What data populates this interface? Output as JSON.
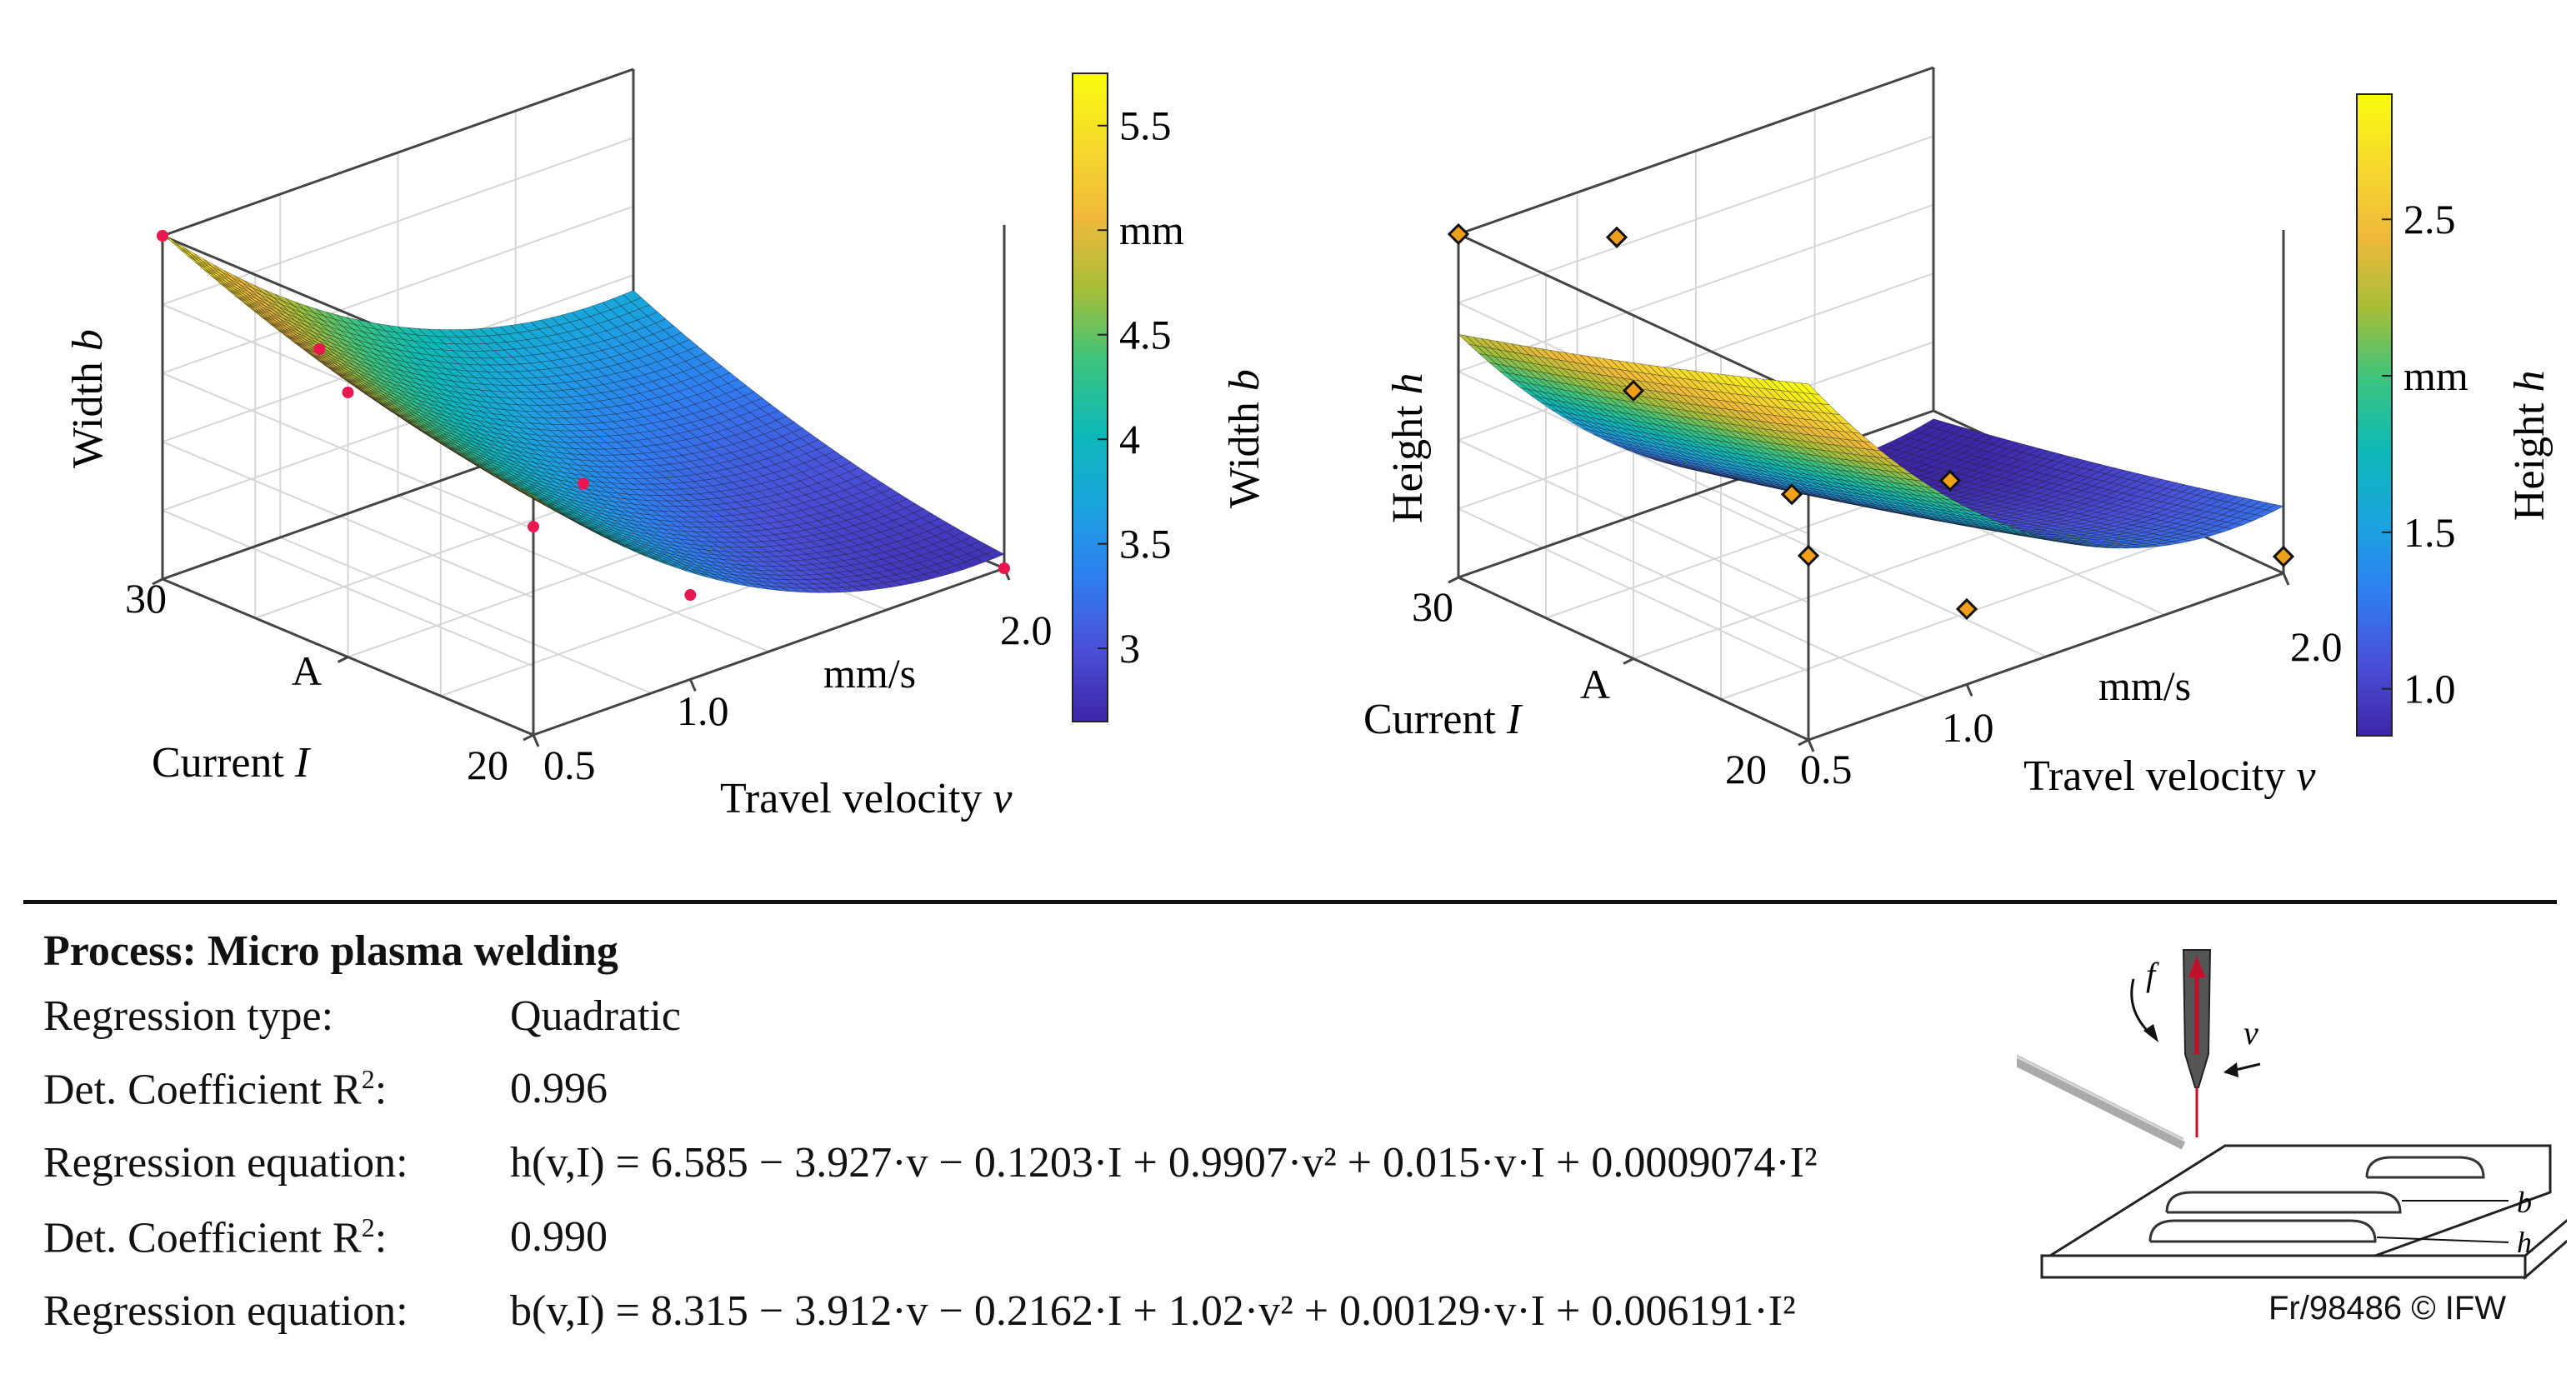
{
  "colors": {
    "colormap": [
      "#3e26a8",
      "#4a4fd8",
      "#2f7ef2",
      "#1aa5de",
      "#0db9b7",
      "#3bc47e",
      "#a6be38",
      "#f0b93a",
      "#f5da2b",
      "#f9fb0e"
    ],
    "width_points": "#e8174f",
    "height_points": "#f0a018"
  },
  "chart_data": [
    {
      "type": "surface3d",
      "name": "width",
      "zlabel_name": "Width",
      "zlabel_var": "b",
      "xlabel_name": "Travel velocity",
      "xlabel_var": "v",
      "x_unit": "mm/s",
      "ylabel_name": "Current",
      "ylabel_var": "I",
      "y_unit": "A",
      "x_range": [
        0.5,
        2.0
      ],
      "y_range": [
        20,
        30
      ],
      "x_ticks": [
        "0.5",
        "1.0",
        "2.0"
      ],
      "y_ticks": [
        "20",
        "30"
      ],
      "z_range": [
        2.65,
        5.7
      ],
      "coefficients": [
        8.315,
        -3.912,
        -0.2162,
        1.02,
        0.00129,
        0.006191
      ],
      "measured_points": [
        [
          0.5,
          30,
          5.7
        ],
        [
          0.5,
          25,
          5.0
        ],
        [
          0.5,
          20,
          4.5
        ],
        [
          1.0,
          30,
          4.2
        ],
        [
          1.25,
          25,
          3.45
        ],
        [
          1.0,
          20,
          3.4
        ],
        [
          2.0,
          20,
          2.65
        ]
      ],
      "colorbar": {
        "label_name": "Width",
        "label_var": "b",
        "ticks": [
          "3",
          "3.5",
          "4",
          "4.5",
          "mm",
          "5.5"
        ],
        "range": [
          2.65,
          5.75
        ]
      }
    },
    {
      "type": "surface3d",
      "name": "height",
      "zlabel_name": "Height",
      "zlabel_var": "h",
      "xlabel_name": "Travel velocity",
      "xlabel_var": "v",
      "x_unit": "mm/s",
      "ylabel_name": "Current",
      "ylabel_var": "I",
      "y_unit": "A",
      "x_range": [
        0.5,
        2.0
      ],
      "y_range": [
        20,
        30
      ],
      "x_ticks": [
        "0.5",
        "1.0",
        "2.0"
      ],
      "y_ticks": [
        "20",
        "30"
      ],
      "z_range": [
        0.85,
        2.9
      ],
      "coefficients": [
        6.585,
        -3.927,
        -0.1203,
        0.9907,
        0.015,
        0.0009074
      ],
      "measured_points": [
        [
          0.5,
          30,
          2.9
        ],
        [
          0.5,
          25,
          2.45
        ],
        [
          0.5,
          20,
          1.95
        ],
        [
          1.0,
          30,
          2.55
        ],
        [
          1.0,
          25,
          1.5
        ],
        [
          1.0,
          20,
          1.3
        ],
        [
          1.5,
          25,
          1.25
        ],
        [
          2.0,
          20,
          0.95
        ]
      ],
      "colorbar": {
        "label_name": "Height",
        "label_var": "h",
        "ticks": [
          "1.0",
          "1.5",
          "mm",
          "2.5"
        ],
        "range": [
          0.85,
          2.9
        ]
      }
    }
  ],
  "process": {
    "title": "Process: Micro plasma welding",
    "regression_type_label": "Regression type:",
    "regression_type": "Quadratic",
    "det_label": "Det. Coefficient R",
    "det_sup": "2",
    "det_colon": ":",
    "r2_h": "0.996",
    "r2_b": "0.990",
    "eq_label": "Regression equation:",
    "eq_h": "h(v,I) = 6.585 − 3.927·v − 0.1203·I + 0.9907·v² + 0.015·v·I + 0.0009074·I²",
    "eq_b": "b(v,I) = 8.315 − 3.912·v − 0.2162·I + 1.02·v² + 0.00129·v·I + 0.006191·I²"
  },
  "sketch": {
    "f": "f",
    "v": "v",
    "b": "b",
    "h": "h"
  },
  "credit": "Fr/98486 © IFW"
}
